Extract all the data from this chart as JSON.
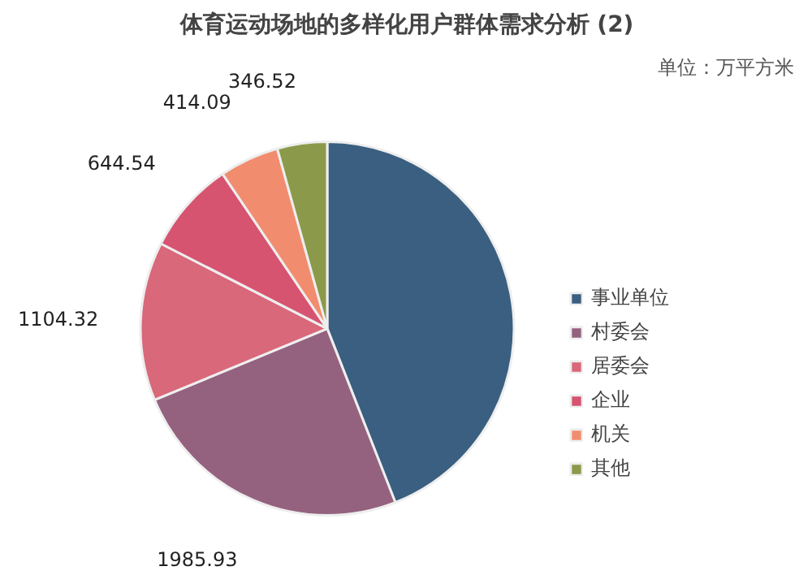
{
  "chart_data": {
    "type": "pie",
    "title": "体育运动场地的多样化用户群体需求分析 (2)",
    "annotations": [
      "单位：万平方米"
    ],
    "categories": [
      "事业单位",
      "村委会",
      "居委会",
      "企业",
      "机关",
      "其他"
    ],
    "values": [
      3540,
      1985.93,
      1104.32,
      644.54,
      414.09,
      346.52
    ],
    "value_labels": [
      null,
      "1985.93",
      "1104.32",
      "644.54",
      "414.09",
      "346.52"
    ],
    "colors": [
      "#3a5f80",
      "#94627f",
      "#d8687a",
      "#d65470",
      "#f28c6e",
      "#8a9a4a"
    ],
    "legend": "right"
  }
}
